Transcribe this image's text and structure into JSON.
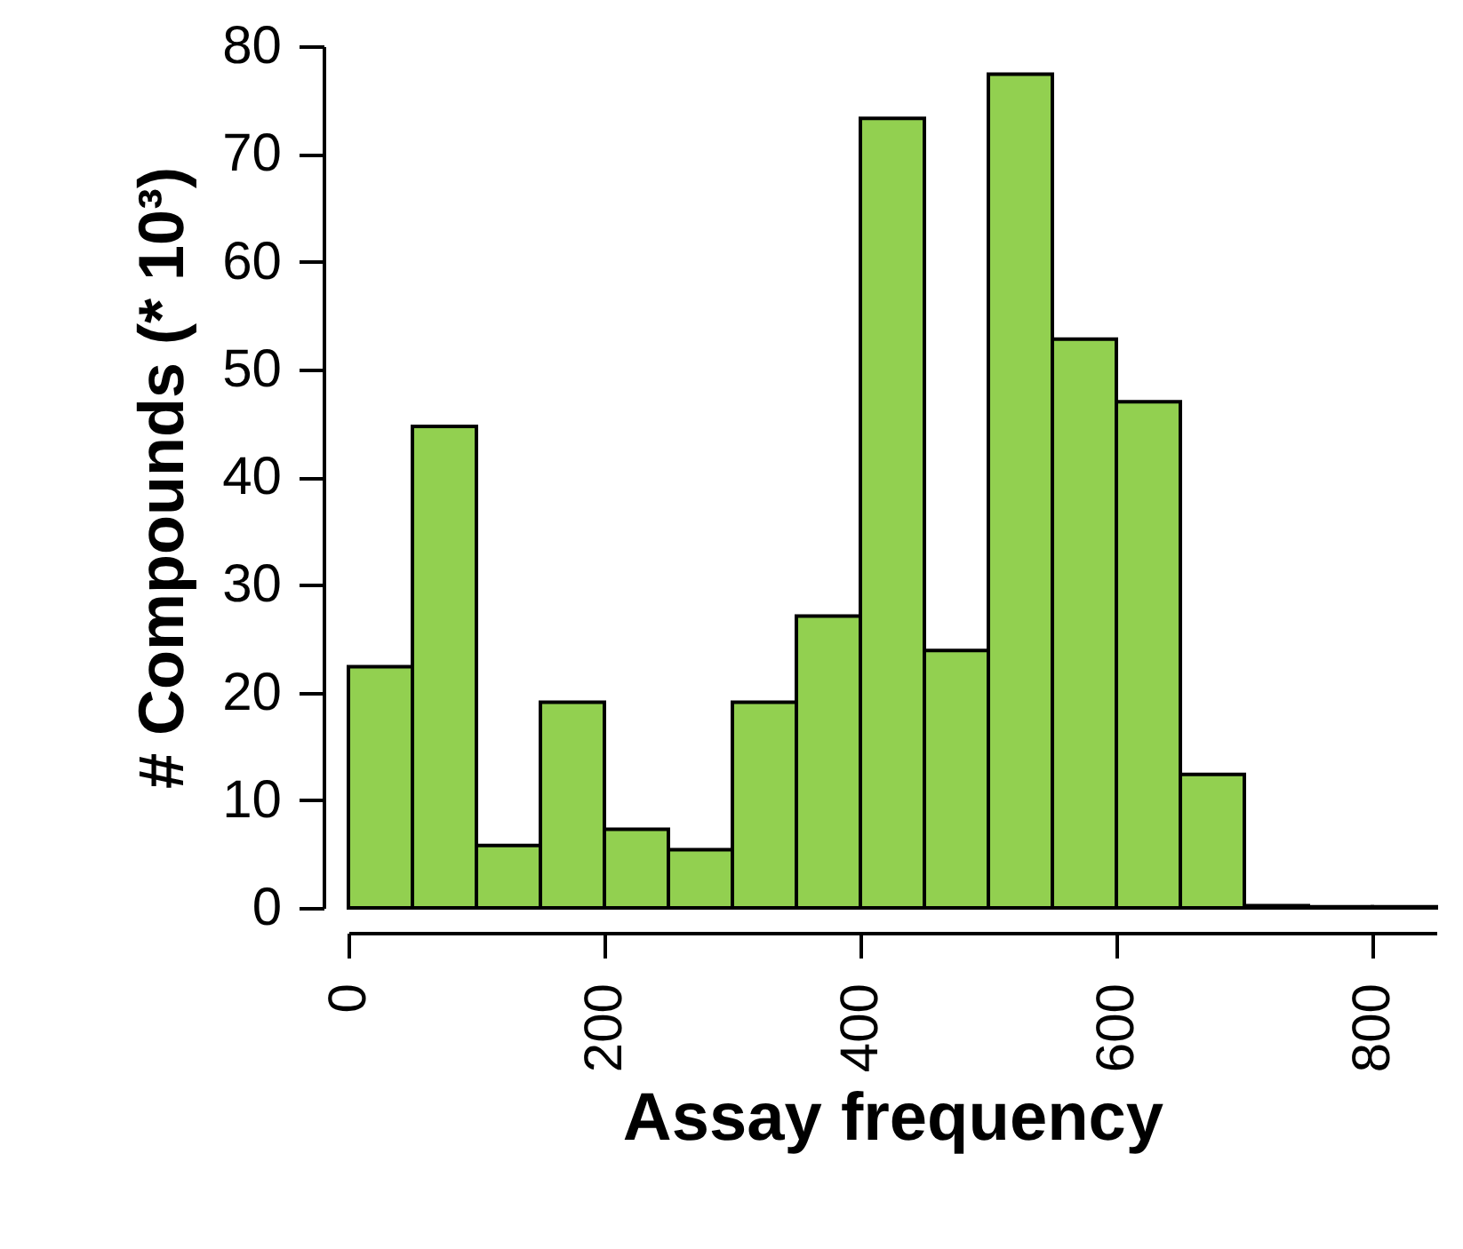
{
  "chart_data": {
    "type": "histogram",
    "xlabel": "Assay frequency",
    "ylabel": "# Compounds (* 10³)",
    "bins": [
      0,
      50,
      100,
      150,
      200,
      250,
      300,
      350,
      400,
      450,
      500,
      550,
      600,
      650,
      700,
      750,
      800,
      850
    ],
    "values": [
      22.4,
      44.7,
      5.8,
      19.1,
      7.3,
      5.4,
      19.1,
      27.1,
      73.3,
      23.9,
      77.4,
      52.8,
      47.0,
      12.4,
      0.2,
      0.1,
      0.1
    ],
    "color": "#92d050",
    "xlim": [
      0,
      850
    ],
    "xticks": [
      0,
      200,
      400,
      600,
      800
    ],
    "ylim": [
      0,
      80
    ],
    "yticks": [
      0,
      10,
      20,
      30,
      40,
      50,
      60,
      70,
      80
    ],
    "grid": false
  }
}
